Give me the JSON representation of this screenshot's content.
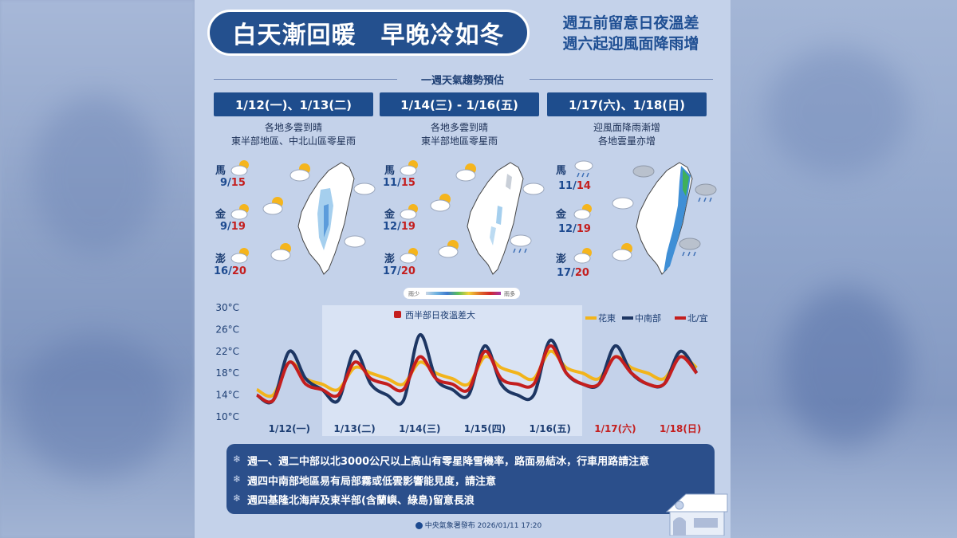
{
  "header": {
    "title": "白天漸回暖　早晚冷如冬",
    "subtitle_line1": "週五前留意日夜溫差",
    "subtitle_line2": "週六起迎風面降雨增"
  },
  "section_title": "一週天氣趨勢預估",
  "periods": [
    {
      "date": "1/12(一)、1/13(二)",
      "desc_line1": "各地多雲到晴",
      "desc_line2": "東半部地區、中北山區零星雨",
      "islands": [
        {
          "name": "馬",
          "lo": "9",
          "hi": "15"
        },
        {
          "name": "金",
          "lo": "9",
          "hi": "19"
        },
        {
          "name": "澎",
          "lo": "16",
          "hi": "20"
        }
      ]
    },
    {
      "date": "1/14(三) - 1/16(五)",
      "desc_line1": "各地多雲到晴",
      "desc_line2": "東半部地區零星雨",
      "islands": [
        {
          "name": "馬",
          "lo": "11",
          "hi": "15"
        },
        {
          "name": "金",
          "lo": "12",
          "hi": "19"
        },
        {
          "name": "澎",
          "lo": "17",
          "hi": "20"
        }
      ]
    },
    {
      "date": "1/17(六)、1/18(日)",
      "desc_line1": "迎風面降雨漸增",
      "desc_line2": "各地雲量亦增",
      "islands": [
        {
          "name": "馬",
          "lo": "11",
          "hi": "14"
        },
        {
          "name": "金",
          "lo": "12",
          "hi": "19"
        },
        {
          "name": "澎",
          "lo": "17",
          "hi": "20"
        }
      ]
    }
  ],
  "temp_sep": "/",
  "rain_scale": {
    "low": "雨少",
    "high": "雨多"
  },
  "chart_data": {
    "type": "line",
    "annotation": "西半部日夜溫差大",
    "y_ticks": [
      "30°C",
      "26°C",
      "22°C",
      "18°C",
      "14°C",
      "10°C"
    ],
    "ylim": [
      10,
      30
    ],
    "categories": [
      "1/12(一)",
      "1/13(二)",
      "1/14(三)",
      "1/15(四)",
      "1/16(五)",
      "1/17(六)",
      "1/18(日)"
    ],
    "category_colors": [
      "#1d3e73",
      "#1d3e73",
      "#1d3e73",
      "#1d3e73",
      "#1d3e73",
      "#c41e1e",
      "#c41e1e"
    ],
    "x": [
      0,
      0.25,
      0.5,
      0.75,
      1,
      1.25,
      1.5,
      1.75,
      2,
      2.25,
      2.5,
      2.75,
      3,
      3.25,
      3.5,
      3.75,
      4,
      4.25,
      4.5,
      4.75,
      5,
      5.25,
      5.5,
      5.75,
      6,
      6.25,
      6.5,
      6.75
    ],
    "series": [
      {
        "name": "花東",
        "color": "#f2b41b",
        "values": [
          15,
          14,
          20,
          17,
          16,
          15,
          19,
          18,
          17,
          16,
          20,
          18,
          17,
          16,
          21,
          19,
          18,
          17,
          22,
          19,
          18,
          17,
          21,
          19,
          18,
          17,
          21,
          19
        ]
      },
      {
        "name": "中南部",
        "color": "#1d3663",
        "values": [
          14,
          13,
          22,
          17,
          15,
          13,
          22,
          16,
          14,
          13,
          25,
          17,
          15,
          14,
          23,
          16,
          14,
          14,
          24,
          18,
          16,
          16,
          23,
          18,
          16,
          16,
          22,
          18
        ]
      },
      {
        "name": "北/宜",
        "color": "#c41e1e",
        "values": [
          14,
          13,
          20,
          16,
          15,
          14,
          20,
          17,
          16,
          15,
          21,
          17,
          16,
          15,
          22,
          17,
          16,
          16,
          23,
          18,
          16,
          16,
          21,
          18,
          16,
          16,
          21,
          18
        ]
      }
    ]
  },
  "notes": [
    "週一、週二中部以北3000公尺以上高山有零星降雪機率，路面易結冰，行車用路請注意",
    "週四中南部地區易有局部霧或低雲影響能見度，請注意",
    "週四基隆北海岸及東半部(含蘭嶼、綠島)留意長浪"
  ],
  "footer": "中央氣象署發布 2026/01/11 17:20"
}
